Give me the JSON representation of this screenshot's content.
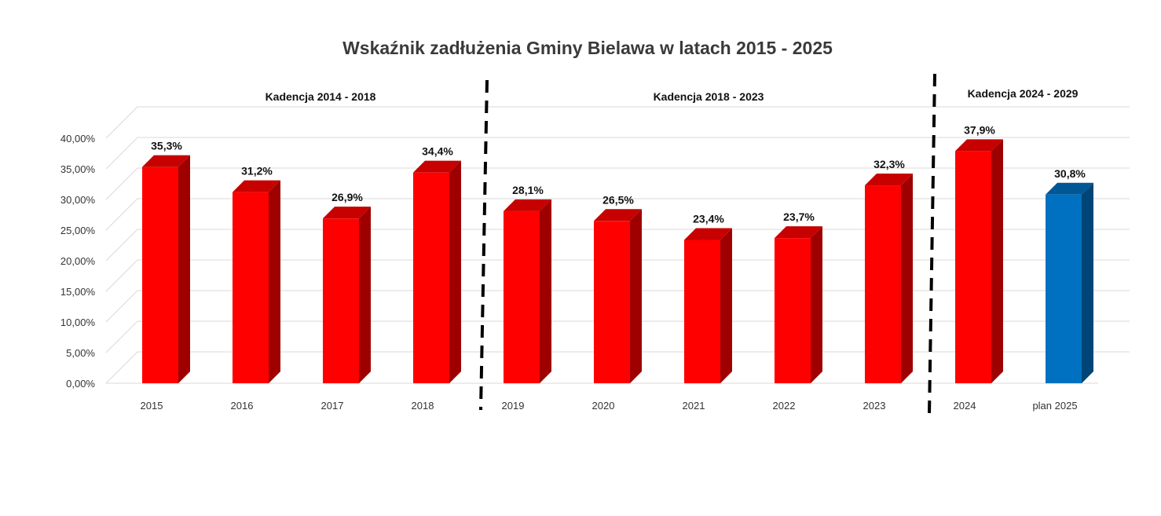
{
  "chart_data": {
    "type": "bar",
    "title": "Wskaźnik zadłużenia Gminy Bielawa w latach 2015 - 2025",
    "xlabel": "",
    "ylabel": "",
    "ylim": [
      0,
      40
    ],
    "y_ticks": [
      "0,00%",
      "5,00%",
      "10,00%",
      "15,00%",
      "20,00%",
      "25,00%",
      "30,00%",
      "35,00%",
      "40,00%"
    ],
    "categories": [
      "2015",
      "2016",
      "2017",
      "2018",
      "2019",
      "2020",
      "2021",
      "2022",
      "2023",
      "2024",
      "plan 2025"
    ],
    "values": [
      35.3,
      31.2,
      26.9,
      34.4,
      28.1,
      26.5,
      23.4,
      23.7,
      32.3,
      37.9,
      30.8
    ],
    "value_labels": [
      "35,3%",
      "31,2%",
      "26,9%",
      "34,4%",
      "28,1%",
      "26,5%",
      "23,4%",
      "23,7%",
      "32,3%",
      "37,9%",
      "30,8%"
    ],
    "bar_colors": [
      "#ff0000",
      "#ff0000",
      "#ff0000",
      "#ff0000",
      "#ff0000",
      "#ff0000",
      "#ff0000",
      "#ff0000",
      "#ff0000",
      "#ff0000",
      "#0070c0"
    ],
    "grid": true,
    "style": "3d-column",
    "terms": [
      {
        "label": "Kadencja 2014 - 2018",
        "from": 0,
        "to": 3
      },
      {
        "label": "Kadencja 2018 - 2023",
        "from": 4,
        "to": 8
      },
      {
        "label": "Kadencja 2024 - 2029",
        "from": 9,
        "to": 10
      }
    ]
  }
}
